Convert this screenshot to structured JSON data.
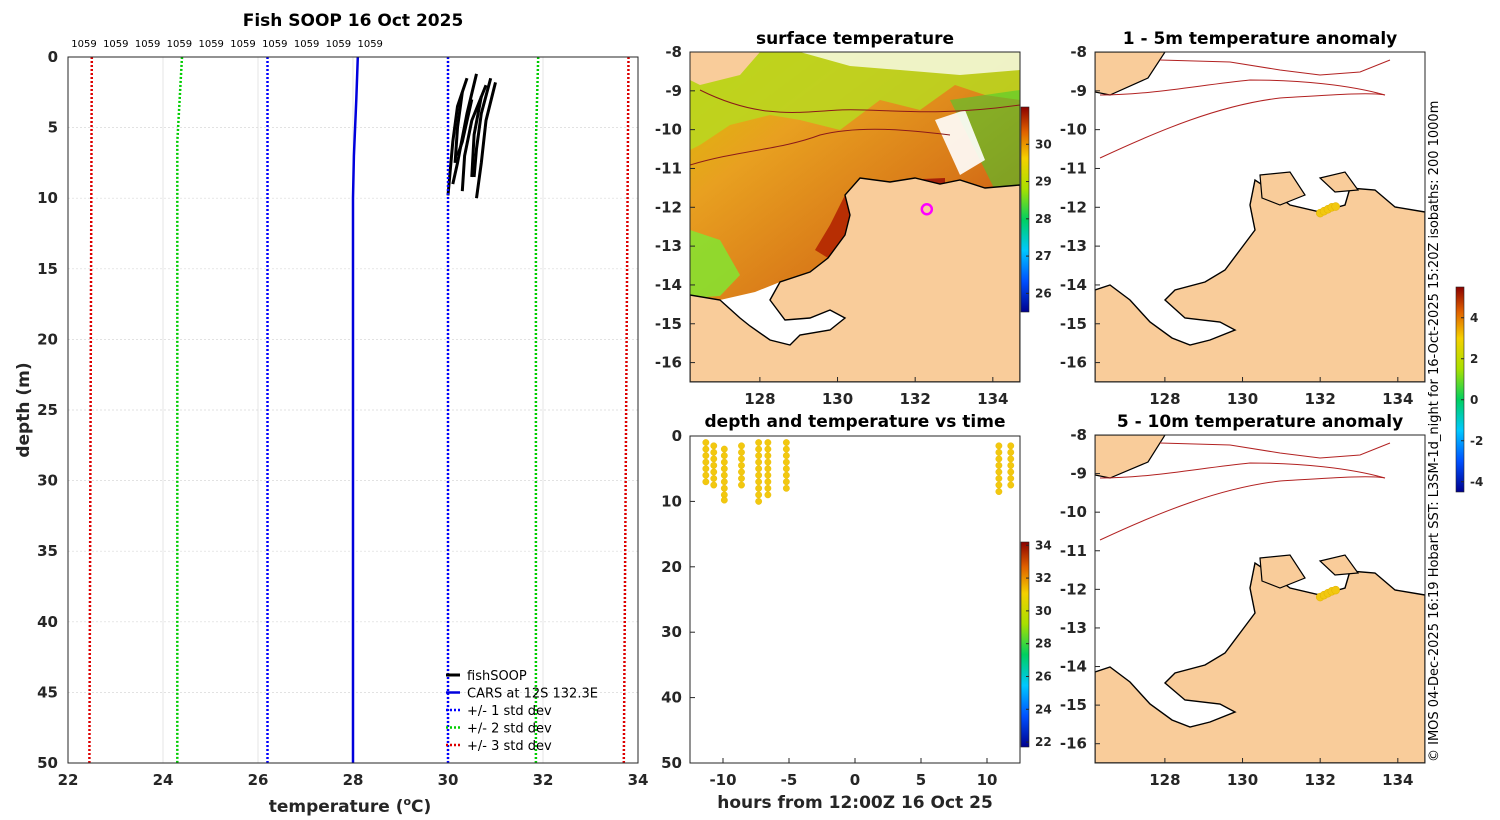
{
  "colors": {
    "land": "#f9cc9a",
    "coast": "#000000",
    "isobath": "#b22222",
    "fish": "#000000",
    "cars": "#0000dd",
    "std1": "#0000ff",
    "std2": "#00cc00",
    "std3": "#dd0000",
    "marker": "#f2c80f",
    "grid": "#d9d9d9"
  },
  "chart_data": [
    {
      "id": "profile",
      "type": "line",
      "title": "Fish SOOP 16 Oct 2025",
      "xlabel_main": "temperature (",
      "xlabel_sup": "o",
      "xlabel_end": "C)",
      "ylabel": "depth (m)",
      "xlim": [
        22,
        34
      ],
      "ylim": [
        0,
        50
      ],
      "xticks": [
        "22",
        "24",
        "26",
        "28",
        "30",
        "32",
        "34"
      ],
      "yticks": [
        "0",
        "5",
        "10",
        "15",
        "20",
        "25",
        "30",
        "35",
        "40",
        "45",
        "50"
      ],
      "top_labels": [
        "1059",
        "1059",
        "1059",
        "1059",
        "1059",
        "1059",
        "1059",
        "1059",
        "1059",
        "1059"
      ],
      "series": [
        {
          "name": "fishSOOP",
          "style": "solid-thick",
          "color": "fish",
          "profiles": [
            [
              [
                30.4,
                1.5
              ],
              [
                30.2,
                3.5
              ],
              [
                30.1,
                6
              ],
              [
                30.0,
                9.8
              ]
            ],
            [
              [
                30.6,
                1.2
              ],
              [
                30.4,
                4
              ],
              [
                30.2,
                7.5
              ],
              [
                30.1,
                9.0
              ]
            ],
            [
              [
                30.8,
                2.0
              ],
              [
                30.5,
                4.5
              ],
              [
                30.35,
                7
              ],
              [
                30.3,
                9.5
              ]
            ],
            [
              [
                30.3,
                2.5
              ],
              [
                30.2,
                5
              ],
              [
                30.15,
                7.5
              ]
            ],
            [
              [
                30.9,
                1.5
              ],
              [
                30.7,
                4
              ],
              [
                30.6,
                6.5
              ],
              [
                30.55,
                8.5
              ]
            ],
            [
              [
                31.0,
                1.8
              ],
              [
                30.8,
                4.5
              ],
              [
                30.7,
                7.5
              ],
              [
                30.6,
                10.0
              ]
            ],
            [
              [
                30.7,
                2.8
              ],
              [
                30.55,
                5.5
              ],
              [
                30.5,
                8.5
              ]
            ],
            [
              [
                30.5,
                3
              ],
              [
                30.3,
                6
              ],
              [
                30.2,
                7.0
              ]
            ]
          ]
        },
        {
          "name": "CARS at 12S 132.3E",
          "style": "solid",
          "color": "cars",
          "points": [
            [
              28.1,
              0
            ],
            [
              28.07,
              3
            ],
            [
              28.02,
              7
            ],
            [
              28.0,
              10
            ],
            [
              28.0,
              50
            ]
          ]
        },
        {
          "name": "+/- 1 std dev",
          "style": "dotted",
          "color": "std1",
          "pairs": [
            [
              [
                26.2,
                0
              ],
              [
                26.2,
                50
              ]
            ],
            [
              [
                30.0,
                0
              ],
              [
                30.0,
                50
              ]
            ]
          ]
        },
        {
          "name": "+/- 2 std dev",
          "style": "dotted",
          "color": "std2",
          "pairs": [
            [
              [
                24.4,
                0
              ],
              [
                24.3,
                6
              ],
              [
                24.3,
                50
              ]
            ],
            [
              [
                31.9,
                0
              ],
              [
                31.85,
                6
              ],
              [
                31.85,
                50
              ]
            ]
          ]
        },
        {
          "name": "+/- 3 std dev",
          "style": "dotted",
          "color": "std3",
          "pairs": [
            [
              [
                22.5,
                0
              ],
              [
                22.45,
                50
              ]
            ],
            [
              [
                33.8,
                0
              ],
              [
                33.7,
                50
              ]
            ]
          ]
        }
      ]
    },
    {
      "id": "sst",
      "type": "heatmap",
      "title": "surface temperature",
      "xlim": [
        126.2,
        134.7
      ],
      "ylim": [
        -16.5,
        -8
      ],
      "xticks": [
        "128",
        "130",
        "132",
        "134"
      ],
      "yticks": [
        "-8",
        "-9",
        "-10",
        "-11",
        "-12",
        "-13",
        "-14",
        "-15",
        "-16"
      ],
      "colorbar": {
        "min": 25.5,
        "max": 31,
        "ticks": [
          "26",
          "27",
          "28",
          "29",
          "30"
        ]
      },
      "vessel_position": [
        132.3,
        -12.05
      ]
    },
    {
      "id": "anom1",
      "type": "scatter",
      "title": "1 - 5m temperature anomaly",
      "xlim": [
        126.2,
        134.7
      ],
      "ylim": [
        -16.5,
        -8
      ],
      "xticks": [
        "128",
        "130",
        "132",
        "134"
      ],
      "yticks": [
        "-8",
        "-9",
        "-10",
        "-11",
        "-12",
        "-13",
        "-14",
        "-15",
        "-16"
      ],
      "track": [
        [
          132.0,
          -12.15
        ],
        [
          132.1,
          -12.1
        ],
        [
          132.2,
          -12.05
        ],
        [
          132.3,
          -12.0
        ],
        [
          132.4,
          -11.98
        ]
      ],
      "anomaly_value": 2.5
    },
    {
      "id": "anom2",
      "type": "scatter",
      "title": "5 - 10m temperature anomaly",
      "xlim": [
        126.2,
        134.7
      ],
      "ylim": [
        -16.5,
        -8
      ],
      "xticks": [
        "128",
        "130",
        "132",
        "134"
      ],
      "yticks": [
        "-8",
        "-9",
        "-10",
        "-11",
        "-12",
        "-13",
        "-14",
        "-15",
        "-16"
      ],
      "track": [
        [
          132.0,
          -12.2
        ],
        [
          132.1,
          -12.15
        ],
        [
          132.2,
          -12.1
        ],
        [
          132.3,
          -12.05
        ],
        [
          132.4,
          -12.02
        ]
      ],
      "anomaly_value": 2.5,
      "colorbar": {
        "min": -4.5,
        "max": 5.5,
        "ticks": [
          "-4",
          "-2",
          "0",
          "2",
          "4"
        ]
      }
    },
    {
      "id": "depthtime",
      "type": "scatter",
      "title": "depth and temperature vs time",
      "xlabel": "hours from 12:00Z 16 Oct 25",
      "xlim": [
        -12.5,
        12.5
      ],
      "ylim": [
        0,
        50
      ],
      "xticks": [
        "-10",
        "-5",
        "0",
        "5",
        "10"
      ],
      "yticks": [
        "0",
        "10",
        "20",
        "30",
        "40",
        "50"
      ],
      "columns": [
        {
          "t": -11.3,
          "depths": [
            1,
            2,
            3,
            4,
            5,
            6,
            7
          ]
        },
        {
          "t": -10.7,
          "depths": [
            1.5,
            2.5,
            3.5,
            4.5,
            5.5,
            6.5,
            7.5
          ]
        },
        {
          "t": -9.9,
          "depths": [
            2,
            3,
            4,
            5,
            6,
            7,
            8,
            9,
            9.8
          ]
        },
        {
          "t": -8.6,
          "depths": [
            1.5,
            2.5,
            3.5,
            4.5,
            5.5,
            6.5,
            7.5
          ]
        },
        {
          "t": -7.3,
          "depths": [
            1,
            2,
            3,
            4,
            5,
            6,
            7,
            8,
            9,
            10
          ]
        },
        {
          "t": -6.6,
          "depths": [
            1,
            2,
            3,
            4,
            5,
            6,
            7,
            8,
            9
          ]
        },
        {
          "t": -5.2,
          "depths": [
            1,
            2,
            3,
            4,
            5,
            6,
            7,
            8
          ]
        },
        {
          "t": 10.9,
          "depths": [
            1.5,
            2.5,
            3.5,
            4.5,
            5.5,
            6.5,
            7.5,
            8.5
          ]
        },
        {
          "t": 11.8,
          "depths": [
            1.5,
            2.5,
            3.5,
            4.5,
            5.5,
            6.5,
            7.5
          ]
        }
      ],
      "temperature_value": 30.2,
      "colorbar": {
        "min": 21.7,
        "max": 34.2,
        "ticks": [
          "22",
          "24",
          "26",
          "28",
          "30",
          "32",
          "34"
        ]
      }
    }
  ],
  "credit": "© IMOS 04-Dec-2025 16:19 Hobart SST: L3SM-1d_night for 16-Oct-2025 15:20Z isobaths: 200  1000m"
}
